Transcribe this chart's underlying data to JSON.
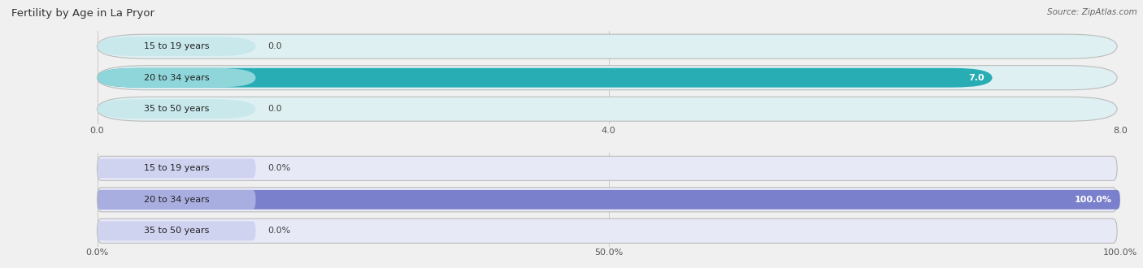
{
  "title": "Fertility by Age in La Pryor",
  "source": "Source: ZipAtlas.com",
  "top_chart": {
    "categories": [
      "15 to 19 years",
      "20 to 34 years",
      "35 to 50 years"
    ],
    "values": [
      0.0,
      7.0,
      0.0
    ],
    "xlim": [
      0,
      8.0
    ],
    "xticks": [
      0.0,
      4.0,
      8.0
    ],
    "xtick_labels": [
      "0.0",
      "4.0",
      "8.0"
    ],
    "bar_color_full": "#29adb5",
    "bar_color_empty": "#8fd6da",
    "bar_bg_color": "#dff0f2",
    "label_bg_color": "#c8e8eb",
    "value_label_inside_color": "#ffffff",
    "value_label_outside_color": "#555555",
    "is_percent": false
  },
  "bottom_chart": {
    "categories": [
      "15 to 19 years",
      "20 to 34 years",
      "35 to 50 years"
    ],
    "values": [
      0.0,
      100.0,
      0.0
    ],
    "xlim": [
      0,
      100.0
    ],
    "xticks": [
      0.0,
      50.0,
      100.0
    ],
    "xtick_labels": [
      "0.0%",
      "50.0%",
      "100.0%"
    ],
    "bar_color_full": "#7b80cc",
    "bar_color_empty": "#a9aee0",
    "bar_bg_color": "#e8e9f7",
    "label_bg_color": "#d0d3f0",
    "value_label_inside_color": "#ffffff",
    "value_label_outside_color": "#555555",
    "is_percent": true
  },
  "bg_color": "#f0f0f0",
  "title_fontsize": 9.5,
  "source_fontsize": 7.5,
  "label_fontsize": 8,
  "tick_fontsize": 8,
  "grid_color": "#c8c8c8"
}
